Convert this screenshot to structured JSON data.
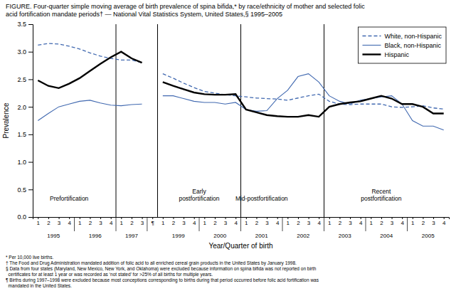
{
  "chart_data": {
    "type": "line",
    "title": "FIGURE. Four-quarter simple moving average of birth prevalence of spina bifida,* by race/ethnicity of mother and selected folic\nacid fortification mandate periods† — National Vital Statistics System, United States,§ 1995–2005",
    "xlabel": "Year/Quarter of birth",
    "ylabel": "Prevalence",
    "categories": [
      "1",
      "2",
      "3",
      "4",
      "1",
      "2",
      "3",
      "4",
      "1",
      "2",
      "3",
      "¶",
      "1",
      "2",
      "3",
      "4",
      "1",
      "2",
      "3",
      "4",
      "1",
      "2",
      "3",
      "4",
      "1",
      "2",
      "3",
      "4",
      "1",
      "2",
      "3",
      "4",
      "1",
      "2",
      "3",
      "4",
      "1",
      "2",
      "3",
      "4"
    ],
    "series": [
      {
        "name": "White, non-Hispanic",
        "color": "#4169b0",
        "line_style": "dashed",
        "values": [
          3.12,
          3.15,
          3.14,
          3.1,
          3.05,
          2.98,
          2.92,
          2.88,
          2.85,
          2.85,
          2.8,
          null,
          2.6,
          2.52,
          2.43,
          2.35,
          2.28,
          2.25,
          2.22,
          2.2,
          2.18,
          2.16,
          2.15,
          2.14,
          2.12,
          2.16,
          2.2,
          2.23,
          2.1,
          2.05,
          2.04,
          2.05,
          2.05,
          2.05,
          2.0,
          1.99,
          2.0,
          2.02,
          1.98,
          1.96
        ]
      },
      {
        "name": "Black, non-Hispanic",
        "color": "#4169b0",
        "line_style": "solid",
        "values": [
          1.75,
          1.88,
          2.0,
          2.05,
          2.1,
          2.12,
          2.07,
          2.03,
          2.02,
          2.04,
          2.05,
          null,
          2.2,
          2.2,
          2.15,
          2.1,
          2.08,
          2.08,
          2.05,
          2.08,
          1.95,
          1.92,
          1.93,
          2.15,
          2.3,
          2.55,
          2.6,
          2.45,
          2.2,
          2.1,
          2.05,
          2.12,
          2.15,
          2.18,
          2.2,
          2.05,
          1.75,
          1.65,
          1.65,
          1.58
        ]
      },
      {
        "name": "Hispanic",
        "color": "#000000",
        "line_style": "solid",
        "values": [
          2.48,
          2.38,
          2.34,
          2.42,
          2.52,
          2.65,
          2.78,
          2.9,
          3.0,
          2.88,
          2.8,
          null,
          2.45,
          2.38,
          2.32,
          2.26,
          2.23,
          2.22,
          2.22,
          2.23,
          1.95,
          1.9,
          1.85,
          1.83,
          1.82,
          1.82,
          1.85,
          1.82,
          2.0,
          2.05,
          2.08,
          2.1,
          2.15,
          2.2,
          2.15,
          2.05,
          2.05,
          2.0,
          1.88,
          1.88
        ]
      }
    ],
    "ylim": [
      0,
      3.5
    ],
    "yticks": [
      {
        "value": 0,
        "label": "0.0"
      },
      0.5,
      {
        "value": 1.0,
        "label": "1.0"
      },
      1.5,
      {
        "value": 2.0,
        "label": "2.0"
      },
      2.5,
      {
        "value": 3.0,
        "label": "3.0"
      },
      3.5
    ],
    "grid": false,
    "legend": "upper right",
    "vlines": [
      7.5,
      11.5,
      19.5,
      27.5
    ],
    "year_boundaries": [
      3.5,
      7.5,
      10.5,
      15.5,
      19.5,
      23.5,
      27.5,
      31.5,
      35.5
    ],
    "year_labels": [
      {
        "x": 1.5,
        "text": "1995"
      },
      {
        "x": 5.5,
        "text": "1996"
      },
      {
        "x": 9.0,
        "text": "1997"
      },
      {
        "x": 13.5,
        "text": "1999"
      },
      {
        "x": 17.5,
        "text": "2000"
      },
      {
        "x": 21.5,
        "text": "2001"
      },
      {
        "x": 25.5,
        "text": "2002"
      },
      {
        "x": 29.5,
        "text": "2003"
      },
      {
        "x": 33.5,
        "text": "2004"
      },
      {
        "x": 37.5,
        "text": "2005"
      }
    ],
    "period_labels": [
      {
        "x": 3.0,
        "y": 0.3,
        "text": "Prefortification"
      },
      {
        "x": 15.5,
        "y": 0.3,
        "text": "Early\npostfortification"
      },
      {
        "x": 21.5,
        "y": 0.3,
        "text": "Mid-postfortification"
      },
      {
        "x": 33.0,
        "y": 0.3,
        "text": "Recent\npostfortification"
      }
    ],
    "footnotes": [
      "* Per 10,000 live births.",
      "† The Food and Drug Administration mandated addition of folic acid to all enriched cereal grain products in the United States by January 1998.",
      "§ Data from four states (Maryland, New Mexico, New York, and Oklahoma) were excluded because information on spina bifida was not reported on birth\n  certificates for at least 1 year or was recorded as ‘not stated’ for >25% of all births for multiple years.",
      "¶ Births during 1997–1998 were excluded because most conceptions corresponding to births during that period occurred before folic acid fortification was\n  mandated in the United States."
    ]
  }
}
